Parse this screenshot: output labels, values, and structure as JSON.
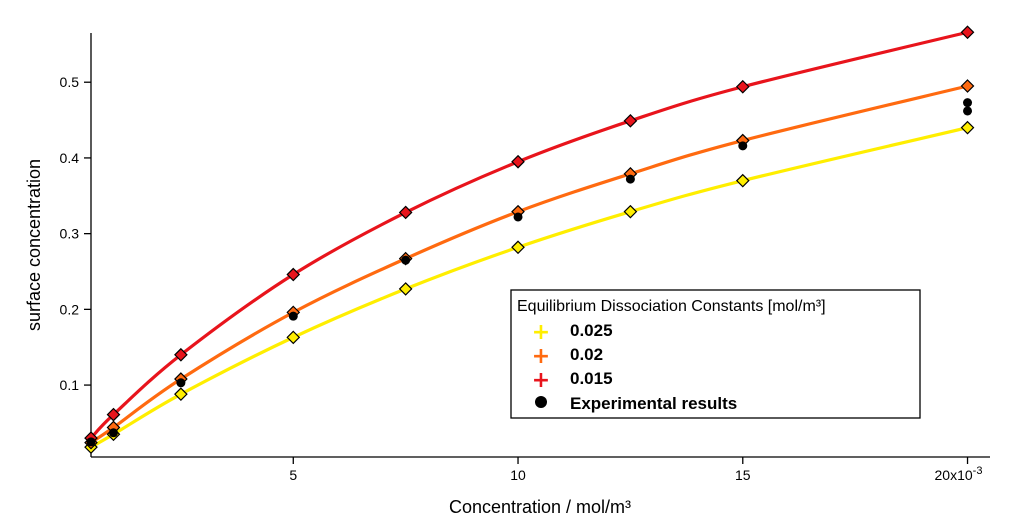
{
  "chart_data": {
    "type": "line",
    "title": "",
    "xlabel": "Concentration / mol/m³",
    "ylabel": "surface concentration",
    "xlim": [
      0.0005,
      0.0205
    ],
    "ylim": [
      0.005,
      0.565
    ],
    "x_ticks": [
      0.005,
      0.01,
      0.015,
      0.02
    ],
    "x_tick_labels": [
      "5",
      "10",
      "15",
      "20x10"
    ],
    "x_exponent_label": "-3",
    "y_ticks": [
      0.1,
      0.2,
      0.3,
      0.4,
      0.5
    ],
    "y_tick_labels": [
      "0.1",
      "0.2",
      "0.3",
      "0.4",
      "0.5"
    ],
    "grid": false,
    "legend": {
      "title": "Equilibrium Dissociation Constants [mol/m³]",
      "position": "lower-right",
      "entries": [
        "0.025",
        "0.02",
        "0.015",
        "Experimental results"
      ]
    },
    "x": [
      0.0005,
      0.001,
      0.0025,
      0.005,
      0.0075,
      0.01,
      0.0125,
      0.015,
      0.02
    ],
    "series": [
      {
        "name": "0.025",
        "color": "#ffee00",
        "values": [
          0.018,
          0.035,
          0.088,
          0.163,
          0.227,
          0.282,
          0.329,
          0.37,
          0.44
        ]
      },
      {
        "name": "0.02",
        "color": "#ff6a10",
        "values": [
          0.024,
          0.044,
          0.108,
          0.196,
          0.267,
          0.329,
          0.379,
          0.423,
          0.495
        ]
      },
      {
        "name": "0.015",
        "color": "#e8141c",
        "values": [
          0.03,
          0.061,
          0.14,
          0.246,
          0.328,
          0.395,
          0.449,
          0.494,
          0.566
        ]
      }
    ],
    "experimental": {
      "name": "Experimental results",
      "color": "#000000",
      "points": [
        [
          0.0005,
          0.025
        ],
        [
          0.001,
          0.037
        ],
        [
          0.0025,
          0.103
        ],
        [
          0.005,
          0.191
        ],
        [
          0.0075,
          0.265
        ],
        [
          0.01,
          0.322
        ],
        [
          0.0125,
          0.372
        ],
        [
          0.015,
          0.416
        ],
        [
          0.02,
          0.462
        ],
        [
          0.02,
          0.473
        ]
      ]
    }
  }
}
